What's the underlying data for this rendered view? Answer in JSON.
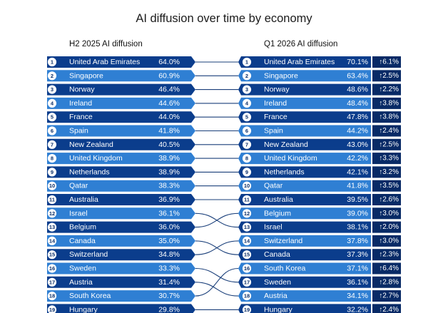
{
  "chart_data": {
    "type": "table",
    "title": "AI diffusion over time by economy",
    "left": {
      "header": "H2 2025 AI diffusion",
      "rows": [
        {
          "rank": 1,
          "name": "United Arab Emirates",
          "value": "64.0%"
        },
        {
          "rank": 2,
          "name": "Singapore",
          "value": "60.9%"
        },
        {
          "rank": 3,
          "name": "Norway",
          "value": "46.4%"
        },
        {
          "rank": 4,
          "name": "Ireland",
          "value": "44.6%"
        },
        {
          "rank": 5,
          "name": "France",
          "value": "44.0%"
        },
        {
          "rank": 6,
          "name": "Spain",
          "value": "41.8%"
        },
        {
          "rank": 7,
          "name": "New Zealand",
          "value": "40.5%"
        },
        {
          "rank": 8,
          "name": "United Kingdom",
          "value": "38.9%"
        },
        {
          "rank": 9,
          "name": "Netherlands",
          "value": "38.9%"
        },
        {
          "rank": 10,
          "name": "Qatar",
          "value": "38.3%"
        },
        {
          "rank": 11,
          "name": "Australia",
          "value": "36.9%"
        },
        {
          "rank": 12,
          "name": "Israel",
          "value": "36.1%"
        },
        {
          "rank": 13,
          "name": "Belgium",
          "value": "36.0%"
        },
        {
          "rank": 14,
          "name": "Canada",
          "value": "35.0%"
        },
        {
          "rank": 15,
          "name": "Switzerland",
          "value": "34.8%"
        },
        {
          "rank": 16,
          "name": "Sweden",
          "value": "33.3%"
        },
        {
          "rank": 17,
          "name": "Austria",
          "value": "31.4%"
        },
        {
          "rank": 18,
          "name": "South Korea",
          "value": "30.7%"
        },
        {
          "rank": 19,
          "name": "Hungary",
          "value": "29.8%"
        }
      ]
    },
    "right": {
      "header": "Q1 2026 AI diffusion",
      "rows": [
        {
          "rank": 1,
          "name": "United Arab Emirates",
          "value": "70.1%",
          "change": "↑6.1%"
        },
        {
          "rank": 2,
          "name": "Singapore",
          "value": "63.4%",
          "change": "↑2.5%"
        },
        {
          "rank": 3,
          "name": "Norway",
          "value": "48.6%",
          "change": "↑2.2%"
        },
        {
          "rank": 4,
          "name": "Ireland",
          "value": "48.4%",
          "change": "↑3.8%"
        },
        {
          "rank": 5,
          "name": "France",
          "value": "47.8%",
          "change": "↑3.8%"
        },
        {
          "rank": 6,
          "name": "Spain",
          "value": "44.2%",
          "change": "↑2.4%"
        },
        {
          "rank": 7,
          "name": "New Zealand",
          "value": "43.0%",
          "change": "↑2.5%"
        },
        {
          "rank": 8,
          "name": "United Kingdom",
          "value": "42.2%",
          "change": "↑3.3%"
        },
        {
          "rank": 9,
          "name": "Netherlands",
          "value": "42.1%",
          "change": "↑3.2%"
        },
        {
          "rank": 10,
          "name": "Qatar",
          "value": "41.8%",
          "change": "↑3.5%"
        },
        {
          "rank": 11,
          "name": "Australia",
          "value": "39.5%",
          "change": "↑2.6%"
        },
        {
          "rank": 12,
          "name": "Belgium",
          "value": "39.0%",
          "change": "↑3.0%"
        },
        {
          "rank": 13,
          "name": "Israel",
          "value": "38.1%",
          "change": "↑2.0%"
        },
        {
          "rank": 14,
          "name": "Switzerland",
          "value": "37.8%",
          "change": "↑3.0%"
        },
        {
          "rank": 15,
          "name": "Canada",
          "value": "37.3%",
          "change": "↑2.3%"
        },
        {
          "rank": 16,
          "name": "South Korea",
          "value": "37.1%",
          "change": "↑6.4%"
        },
        {
          "rank": 17,
          "name": "Sweden",
          "value": "36.1%",
          "change": "↑2.8%"
        },
        {
          "rank": 18,
          "name": "Austria",
          "value": "34.1%",
          "change": "↑2.7%"
        },
        {
          "rank": 19,
          "name": "Hungary",
          "value": "32.2%",
          "change": "↑2.4%"
        }
      ]
    },
    "colors": {
      "bar_dark": "#0b3d8c",
      "bar_light": "#2f7fd3",
      "badge_dark": "#082a66",
      "connector": "#1a3f7a",
      "circle_fill": "#ffffff",
      "circle_text": "#0b2f6a"
    }
  }
}
